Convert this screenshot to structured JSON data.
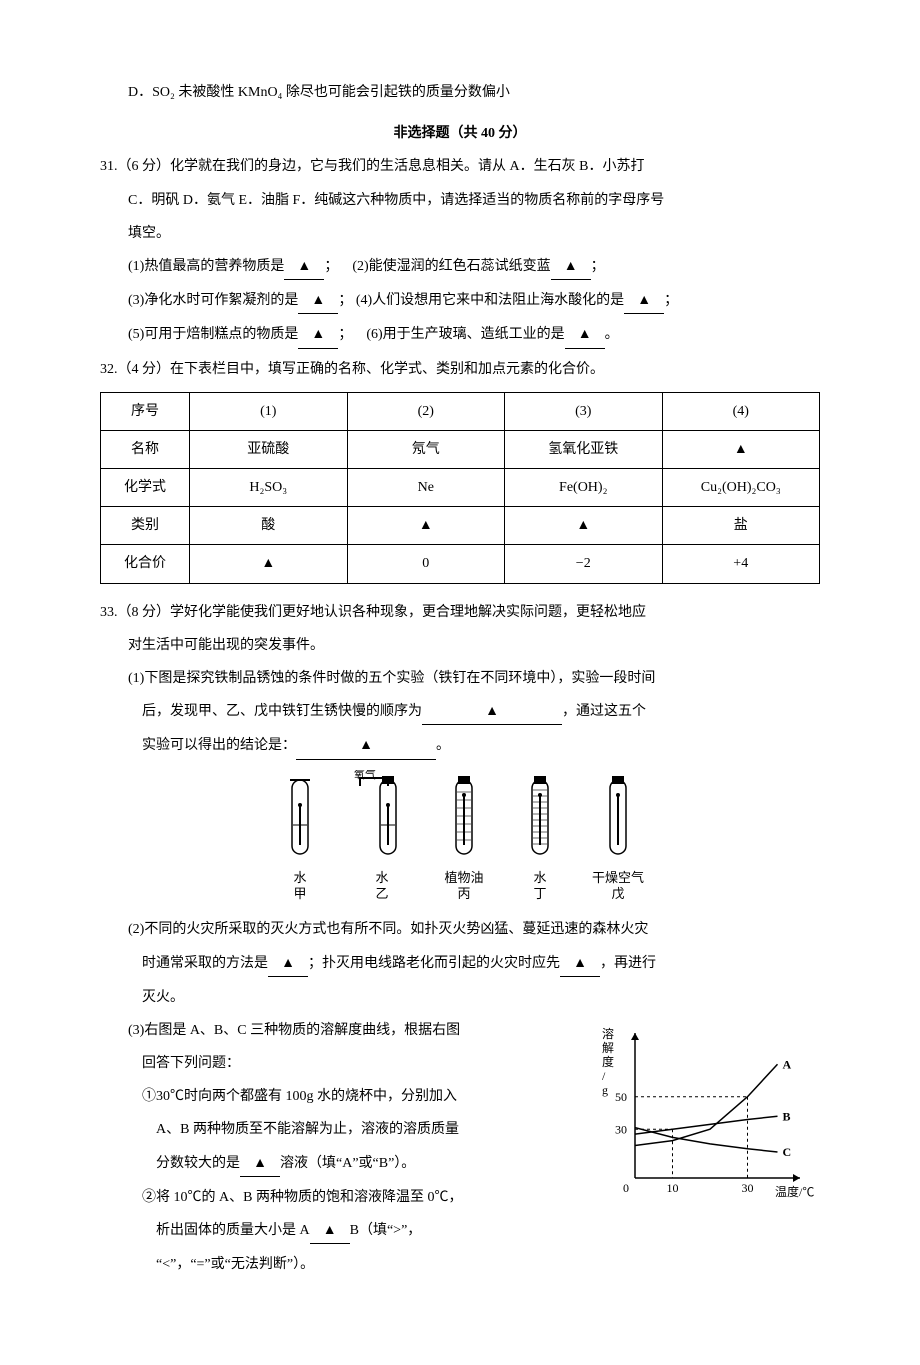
{
  "option_d": "D．SO₂ 未被酸性 KMnO₄ 除尽也可能会引起铁的质量分数偏小",
  "section_header": "非选择题（共 40 分）",
  "q31": {
    "stem1": "31.（6 分）化学就在我们的身边，它与我们的生活息息相关。请从 A．生石灰 B．小苏打",
    "stem2": "C．明矾 D．氨气 E．油脂 F．纯碱这六种物质中，请选择适当的物质名称前的字母序号",
    "stem3": "填空。",
    "p1a": "(1)热值最高的营养物质是",
    "p1b": "；",
    "p2a": "(2)能使湿润的红色石蕊试纸变蓝",
    "p2b": "；",
    "p3a": "(3)净化水时可作絮凝剂的是",
    "p3b": "；",
    "p4a": "(4)人们设想用它来中和法阻止海水酸化的是",
    "p4b": "；",
    "p5a": "(5)可用于焙制糕点的物质是",
    "p5b": "；",
    "p6a": "(6)用于生产玻璃、造纸工业的是",
    "p6b": "。"
  },
  "q32": {
    "stem": "32.（4 分）在下表栏目中，填写正确的名称、化学式、类别和加点元素的化合价。",
    "headers": [
      "序号",
      "(1)",
      "(2)",
      "(3)",
      "(4)"
    ],
    "rows": [
      [
        "名称",
        "亚硫酸",
        "氖气",
        "氢氧化亚铁",
        "▲"
      ],
      [
        "化学式",
        "H₂SO₃",
        "Ne",
        "Fe(OH)₂",
        "Cu₂(OH)₂CO₃"
      ],
      [
        "类别",
        "酸",
        "▲",
        "▲",
        "盐"
      ],
      [
        "化合价",
        "▲",
        "0",
        "−2",
        "+4"
      ]
    ]
  },
  "q33": {
    "stem1": "33.（8 分）学好化学能使我们更好地认识各种现象，更合理地解决实际问题，更轻松地应",
    "stem2": "对生活中可能出现的突发事件。",
    "p1a": "(1)下图是探究铁制品锈蚀的条件时做的五个实验（铁钉在不同环境中），实验一段时间",
    "p1b": "后，发现甲、乙、戊中铁钉生锈快慢的顺序为",
    "p1c": "，通过这五个",
    "p1d": "实验可以得出的结论是：",
    "p1e": "。",
    "o2_label": "氧气",
    "tubes": [
      {
        "medium": "水",
        "name": "甲"
      },
      {
        "medium": "水",
        "name": "乙"
      },
      {
        "medium": "植物油",
        "name": "丙"
      },
      {
        "medium": "水",
        "name": "丁"
      },
      {
        "medium": "干燥空气",
        "name": "戊"
      }
    ],
    "p2a": "(2)不同的火灾所采取的灭火方式也有所不同。如扑灭火势凶猛、蔓延迅速的森林火灾",
    "p2b": "时通常采取的方法是",
    "p2c": "；扑灭用电线路老化而引起的火灾时应先",
    "p2d": "，再进行",
    "p2e": "灭火。",
    "p3_intro1": "(3)右图是 A、B、C 三种物质的溶解度曲线，根据右图",
    "p3_intro2": "回答下列问题：",
    "p3_1a": "①30℃时向两个都盛有 100g 水的烧杯中，分别加入",
    "p3_1b": "A、B 两种物质至不能溶解为止，溶液的溶质质量",
    "p3_1c": "分数较大的是",
    "p3_1d": "溶液（填“A”或“B”）。",
    "p3_2a": "②将 10℃的 A、B 两种物质的饱和溶液降温至 0℃，",
    "p3_2b": "析出固体的质量大小是 A",
    "p3_2c": "B（填“>”，",
    "p3_2d": "“<”，“=”或“无法判断”）。"
  },
  "chart": {
    "y_label": "溶解度/g",
    "x_label": "温度/℃",
    "y_ticks": [
      30,
      50
    ],
    "x_ticks": [
      10,
      30
    ],
    "colors": {
      "axis": "#000",
      "dash": "#000",
      "bg": "#fff"
    },
    "curves": {
      "A": {
        "label": "A",
        "points": [
          [
            0,
            20
          ],
          [
            10,
            23
          ],
          [
            20,
            30
          ],
          [
            30,
            50
          ],
          [
            38,
            70
          ]
        ]
      },
      "B": {
        "label": "B",
        "points": [
          [
            0,
            27
          ],
          [
            10,
            30
          ],
          [
            20,
            33
          ],
          [
            30,
            36
          ],
          [
            38,
            38
          ]
        ]
      },
      "C": {
        "label": "C",
        "points": [
          [
            0,
            31
          ],
          [
            10,
            25
          ],
          [
            20,
            21
          ],
          [
            30,
            18
          ],
          [
            38,
            16
          ]
        ]
      }
    }
  }
}
